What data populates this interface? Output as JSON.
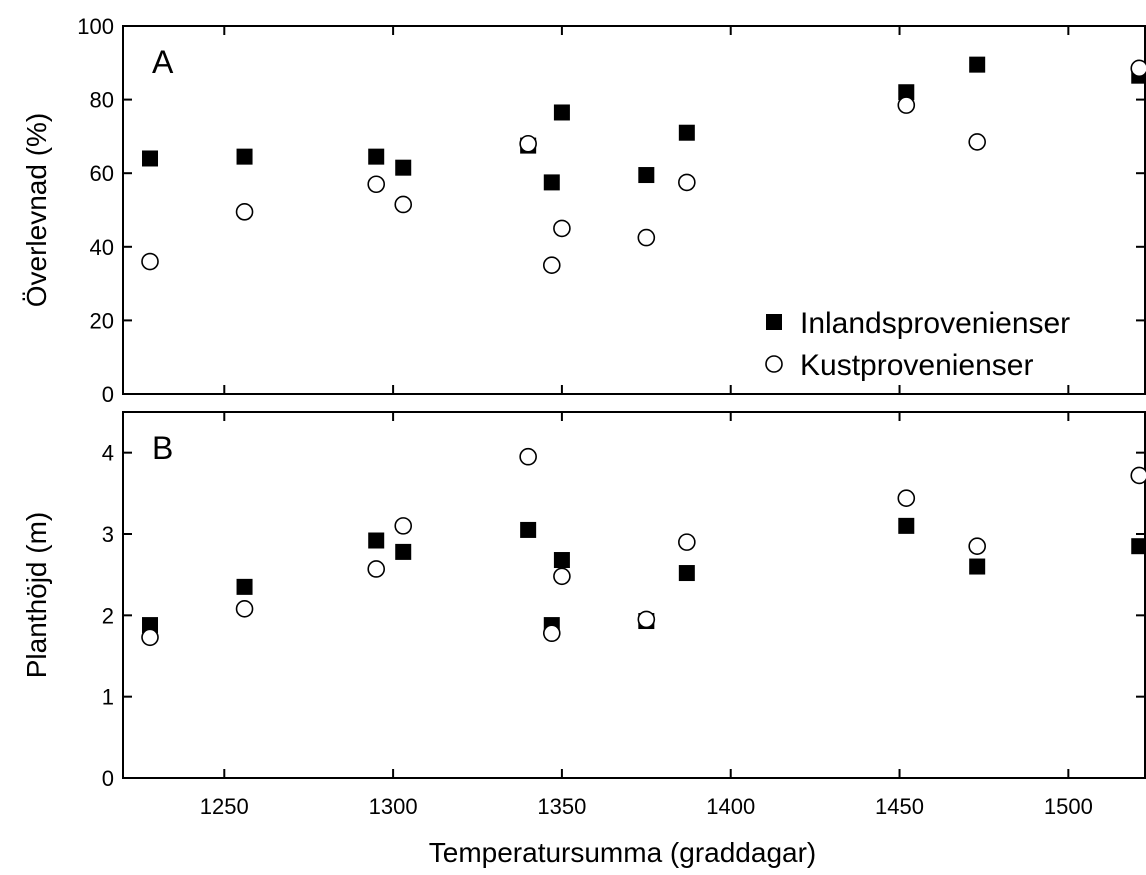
{
  "chart_data": [
    {
      "type": "scatter",
      "panel_label": "A",
      "ylabel": "Överlevnad (%)",
      "ylim": [
        0,
        100
      ],
      "yticks": [
        0,
        20,
        40,
        60,
        80,
        100
      ],
      "xlim": [
        1220,
        1523
      ],
      "legend_placement": "bottom-right",
      "series": [
        {
          "name": "Inlandsprovenienser",
          "marker": "filled-square",
          "x": [
            1228,
            1256,
            1295,
            1303,
            1340,
            1347,
            1350,
            1375,
            1387,
            1452,
            1473,
            1521
          ],
          "y": [
            64,
            64.5,
            64.5,
            61.5,
            67.5,
            57.5,
            76.5,
            59.5,
            71,
            82,
            89.5,
            86.5
          ]
        },
        {
          "name": "Kustprovenienser",
          "marker": "open-circle",
          "x": [
            1228,
            1256,
            1295,
            1303,
            1340,
            1347,
            1350,
            1375,
            1387,
            1452,
            1473,
            1521
          ],
          "y": [
            36,
            49.5,
            57,
            51.5,
            68,
            35,
            45,
            42.5,
            57.5,
            78.5,
            68.5,
            88.5
          ]
        }
      ]
    },
    {
      "type": "scatter",
      "panel_label": "B",
      "ylabel": "Planthöjd (m)",
      "xlabel": "Temperatursumma (graddagar)",
      "ylim": [
        0,
        4.5
      ],
      "yticks": [
        0,
        1,
        2,
        3,
        4
      ],
      "xlim": [
        1220,
        1523
      ],
      "xticks": [
        1250,
        1300,
        1350,
        1400,
        1450,
        1500
      ],
      "series": [
        {
          "name": "Inlandsprovenienser",
          "marker": "filled-square",
          "x": [
            1228,
            1256,
            1295,
            1303,
            1340,
            1347,
            1350,
            1375,
            1387,
            1452,
            1473,
            1521
          ],
          "y": [
            1.88,
            2.35,
            2.92,
            2.78,
            3.05,
            1.88,
            2.68,
            1.93,
            2.52,
            3.1,
            2.6,
            2.85
          ]
        },
        {
          "name": "Kustprovenienser",
          "marker": "open-circle",
          "x": [
            1228,
            1256,
            1295,
            1303,
            1340,
            1347,
            1350,
            1375,
            1387,
            1452,
            1473,
            1521
          ],
          "y": [
            1.73,
            2.08,
            2.57,
            3.1,
            3.95,
            1.78,
            2.48,
            1.95,
            2.9,
            3.44,
            2.85,
            3.72
          ]
        }
      ]
    }
  ]
}
